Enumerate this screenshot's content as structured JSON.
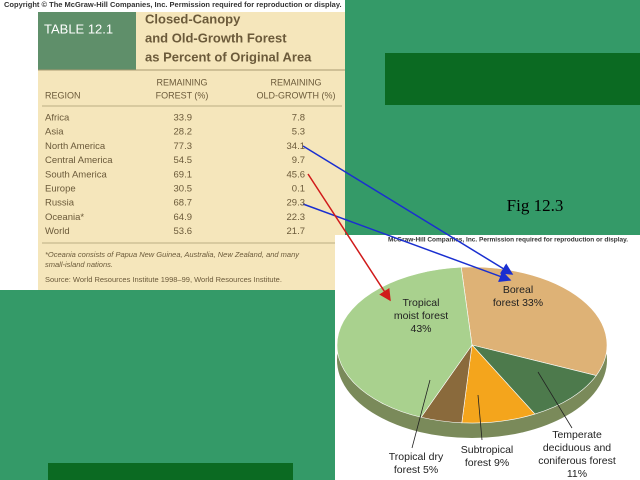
{
  "copyright_left": "Copyright © The McGraw-Hill Companies, Inc. Permission required for reproduction or display.",
  "copyright_right": "McGraw-Hill Companies, Inc. Permission required for reproduction or display.",
  "figure_label": "Fig 12.3",
  "table": {
    "number": "TABLE 12.1",
    "title": [
      "Closed-Canopy",
      "and Old-Growth Forest",
      "as Percent of Original Area"
    ],
    "headers": [
      [
        "REGION"
      ],
      [
        "REMAINING",
        "FOREST (%)"
      ],
      [
        "REMAINING",
        "OLD-GROWTH (%)"
      ]
    ],
    "rows": [
      [
        "Africa",
        33.9,
        7.8
      ],
      [
        "Asia",
        28.2,
        5.3
      ],
      [
        "North America",
        77.3,
        34.1
      ],
      [
        "Central America",
        54.5,
        9.7
      ],
      [
        "South America",
        69.1,
        45.6
      ],
      [
        "Europe",
        30.5,
        0.1
      ],
      [
        "Russia",
        68.7,
        29.3
      ],
      [
        "Oceania*",
        64.9,
        22.3
      ],
      [
        "World",
        53.6,
        21.7
      ]
    ],
    "footnote": [
      "*Oceania consists of Papua New Guinea, Australia, New Zealand, and many",
      "small-island nations."
    ],
    "source": "Source: World Resources Institute 1998–99, World Resources Institute."
  },
  "chart_data": {
    "type": "pie",
    "categories": [
      [
        "Boreal",
        "forest"
      ],
      [
        "Temperate",
        "deciduous and",
        "coniferous forest"
      ],
      [
        "Subtropical",
        "forest"
      ],
      [
        "Tropical dry",
        "forest"
      ],
      [
        "Tropical",
        "moist forest"
      ]
    ],
    "values": [
      33,
      11,
      9,
      5,
      43
    ],
    "value_labels": [
      "33%",
      "11%",
      "9%",
      "5%",
      "43%"
    ],
    "colors": [
      "#deb276",
      "#4d7a4c",
      "#f4a51c",
      "#8a6a3c",
      "#a9d18e"
    ]
  }
}
